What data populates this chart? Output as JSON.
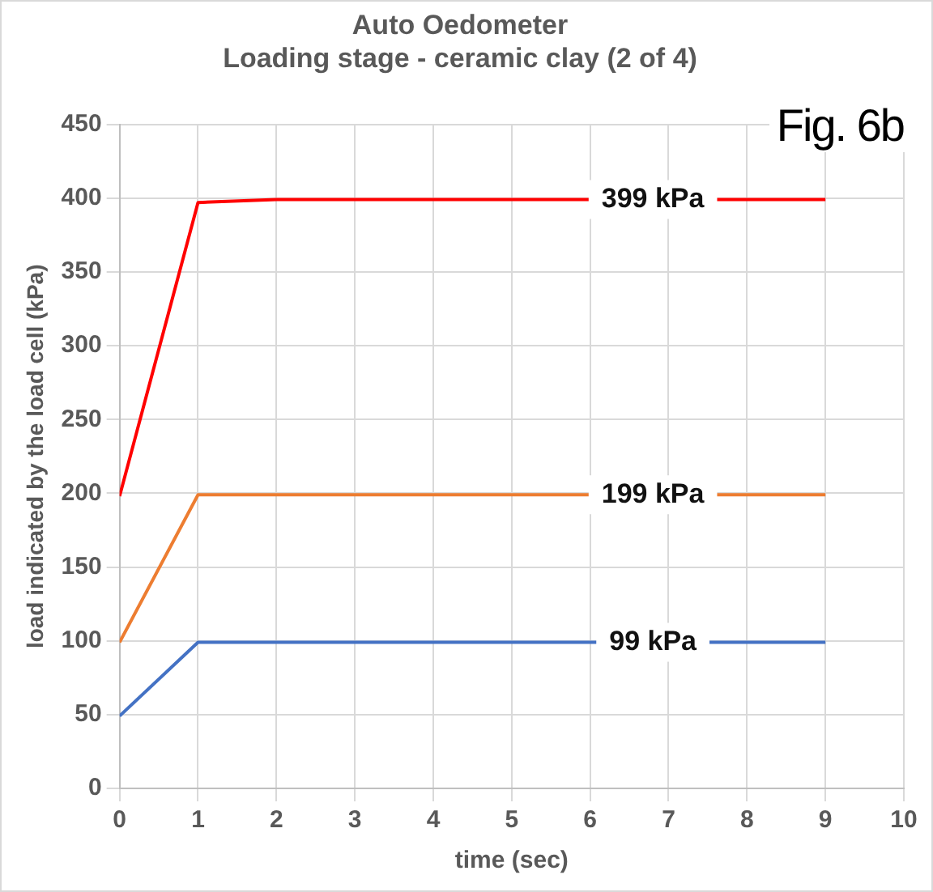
{
  "chart_data": {
    "type": "line",
    "title": [
      "Auto Oedometer",
      "Loading stage - ceramic clay (2 of 4)"
    ],
    "xlabel": "time (sec)",
    "ylabel": "load indicated by the load cell (kPa)",
    "x": [
      0,
      1,
      2,
      9
    ],
    "series": [
      {
        "color": "#4472c4",
        "values": [
          49,
          99,
          99,
          99
        ]
      },
      {
        "color": "#ed7d31",
        "values": [
          99,
          199,
          199,
          199
        ]
      },
      {
        "color": "#ff0000",
        "values": [
          198,
          397,
          399,
          399
        ]
      }
    ],
    "xlim": [
      0,
      10
    ],
    "xticks": [
      0,
      1,
      2,
      3,
      4,
      5,
      6,
      7,
      8,
      9,
      10
    ],
    "ylim": [
      0,
      450
    ],
    "yticks": [
      0,
      50,
      100,
      150,
      200,
      250,
      300,
      350,
      400,
      450
    ],
    "grid": true,
    "legend": false,
    "marker": "none",
    "line_style": "solid",
    "annotations": [
      {
        "text": "399 kPa",
        "y": 399
      },
      {
        "text": "199 kPa",
        "y": 199
      },
      {
        "text": "99 kPa",
        "y": 99
      },
      "Fig. 6b"
    ]
  }
}
